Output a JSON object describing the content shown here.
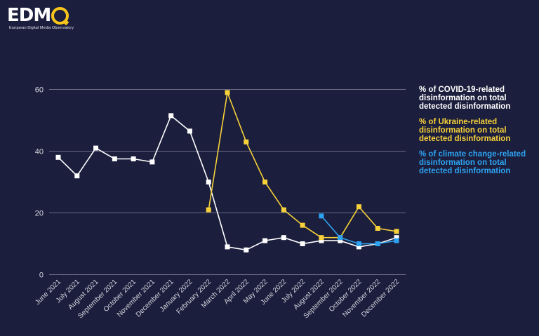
{
  "logo": {
    "text_main": "EDM",
    "text_o": "O",
    "subtitle": "European Digital Media Observatory"
  },
  "colors": {
    "background": "#1b1e3c",
    "covid": "#ffffff",
    "ukraine": "#f7d13a",
    "climate": "#2ea3f2",
    "grid": "#6b6d85",
    "tick_text": "#d6d7e0"
  },
  "chart_data": {
    "type": "line",
    "title": "",
    "xlabel": "",
    "ylabel": "",
    "ylim": [
      0,
      60
    ],
    "yticks": [
      0,
      20,
      40,
      60
    ],
    "grid": true,
    "legend_position": "right",
    "categories": [
      "June 2021",
      "July 2021",
      "August 2021",
      "September 2021",
      "October 2021",
      "November 2021",
      "December 2021",
      "January 2022",
      "February 2022",
      "March 2022",
      "April 2022",
      "May 2022",
      "June 2022",
      "July 2022",
      "August 2022",
      "September 2022",
      "October 2022",
      "November 2022",
      "December 2022"
    ],
    "series": [
      {
        "key": "covid",
        "name": "% of COVID-19-related disinformation on total detected disinformation",
        "legend_lines": [
          "% of COVID-19-related",
          "disinformation on total",
          "detected disinformation"
        ],
        "values": [
          38,
          32,
          41,
          37.5,
          37.5,
          36.5,
          51.5,
          46.5,
          30,
          9,
          8,
          11,
          12,
          10,
          11,
          11,
          9,
          10,
          12
        ]
      },
      {
        "key": "ukraine",
        "name": "% of Ukraine-related disinformation on total detected disinformation",
        "legend_lines": [
          "% of Ukraine-related",
          "disinformation on total",
          "detected disinformation"
        ],
        "values": [
          null,
          null,
          null,
          null,
          null,
          null,
          null,
          null,
          21,
          59,
          43,
          30,
          21,
          16,
          12,
          12,
          22,
          15,
          14
        ]
      },
      {
        "key": "climate",
        "name": "% of climate change-related disinformation on total detected disinformation",
        "legend_lines": [
          "% of climate change-related",
          "disinformation on total",
          "detected disinformation"
        ],
        "values": [
          null,
          null,
          null,
          null,
          null,
          null,
          null,
          null,
          null,
          null,
          null,
          null,
          null,
          null,
          19,
          12,
          10,
          10,
          11
        ]
      }
    ]
  }
}
